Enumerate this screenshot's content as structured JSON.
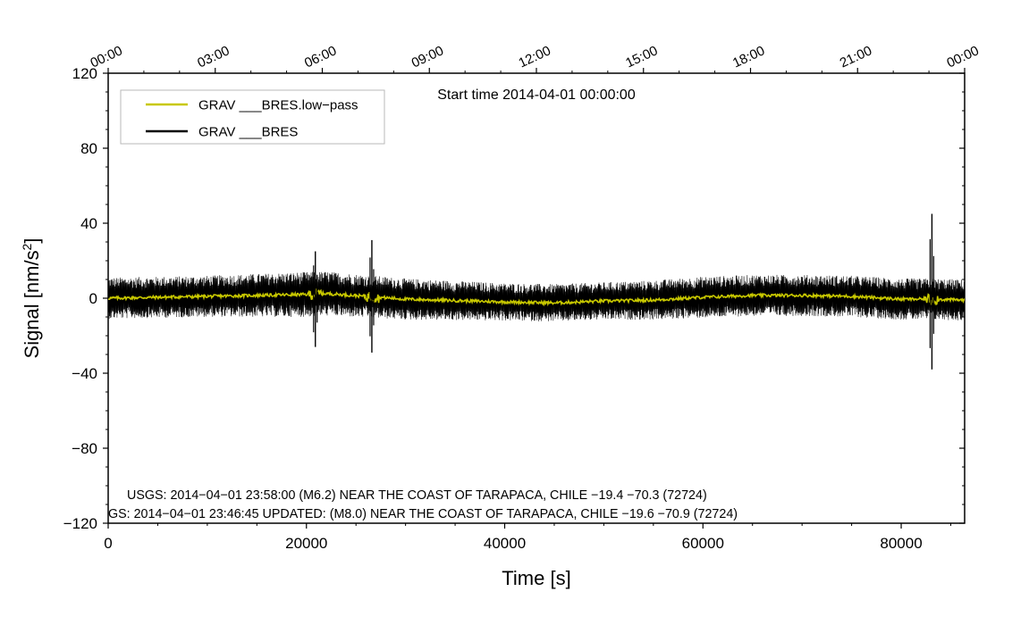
{
  "chart_data": {
    "type": "line",
    "title": "Start time 2014-04-01 00:00:00",
    "xlabel": "Time [s]",
    "ylabel_main": "Signal [nm/s",
    "ylabel_sup": "2",
    "ylabel_close": "]",
    "xlim": [
      0,
      86400
    ],
    "ylim": [
      -120,
      120
    ],
    "x_ticks": [
      0,
      20000,
      40000,
      60000,
      80000
    ],
    "x_tick_labels": [
      "0",
      "20000",
      "40000",
      "60000",
      "80000"
    ],
    "y_ticks": [
      -120,
      -80,
      -40,
      0,
      40,
      80,
      120
    ],
    "y_tick_labels": [
      "−120",
      "−80",
      "−40",
      "0",
      "40",
      "80",
      "120"
    ],
    "top_axis_hours": [
      0,
      3,
      6,
      9,
      12,
      15,
      18,
      21,
      24
    ],
    "top_axis_labels": [
      "00:00",
      "03:00",
      "06:00",
      "09:00",
      "12:00",
      "15:00",
      "18:00",
      "21:00",
      "00:00"
    ],
    "legend_position": "top-left",
    "series": [
      {
        "name": "GRAV ___BRES.low−pass",
        "color": "#c8c800",
        "trend_x": [
          0,
          10000,
          20000,
          22000,
          26000,
          30000,
          40000,
          45000,
          50000,
          55000,
          60000,
          65000,
          70000,
          75000,
          80000,
          83000,
          86400
        ],
        "trend_y": [
          0,
          1,
          2,
          2.5,
          1,
          -0.5,
          -2,
          -2.5,
          -1.5,
          -1,
          0.5,
          1.5,
          1.5,
          1,
          -0.5,
          -0.5,
          -1
        ]
      },
      {
        "name": "GRAV ___BRES",
        "color": "#000000",
        "noise_x": [
          0,
          10000,
          20000,
          30000,
          40000,
          50000,
          60000,
          70000,
          80000,
          86400
        ],
        "noise_amplitude": [
          11,
          11,
          12,
          11,
          10,
          10,
          11,
          11,
          11,
          11
        ],
        "spike_x": [
          20900,
          26600,
          83100
        ],
        "spike_max": [
          25,
          31,
          45
        ],
        "spike_min": [
          -26,
          -29,
          -38
        ]
      }
    ],
    "annotations": [
      "USGS: 2014−04−01 23:58:00 (M6.2) NEAR THE COAST OF TARAPACA, CHILE −19.4 −70.3 (72724)",
      "GS: 2014−04−01 23:46:45 UPDATED: (M8.0) NEAR THE COAST OF TARAPACA, CHILE −19.6 −70.9 (72724)"
    ]
  }
}
